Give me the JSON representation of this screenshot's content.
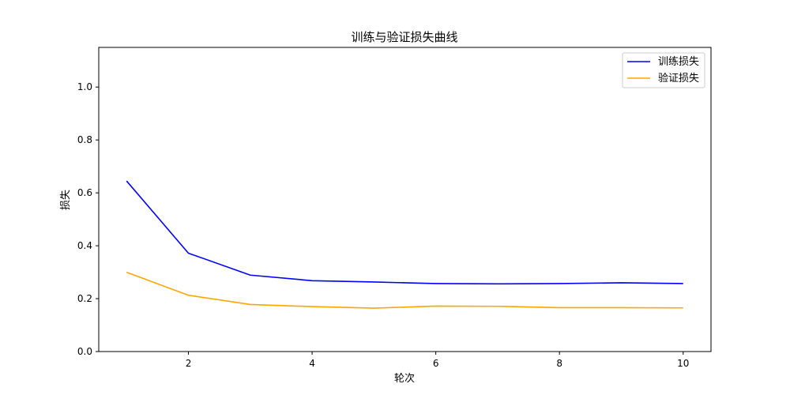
{
  "chart_data": {
    "type": "line",
    "title": "训练与验证损失曲线",
    "xlabel": "轮次",
    "ylabel": "损失",
    "xlim": [
      0.55,
      10.45
    ],
    "ylim": [
      0.0,
      1.15
    ],
    "xticks": [
      2,
      4,
      6,
      8,
      10
    ],
    "yticks": [
      0.0,
      0.2,
      0.4,
      0.6,
      0.8,
      1.0
    ],
    "xtick_labels": [
      "2",
      "4",
      "6",
      "8",
      "10"
    ],
    "ytick_labels": [
      "0.0",
      "0.2",
      "0.4",
      "0.6",
      "0.8",
      "1.0"
    ],
    "grid": false,
    "legend_position": "top-right",
    "x": [
      1,
      2,
      3,
      4,
      5,
      6,
      7,
      8,
      9,
      10
    ],
    "series": [
      {
        "name": "训练损失",
        "color": "#0000ff",
        "values": [
          0.645,
          0.372,
          0.289,
          0.268,
          0.263,
          0.257,
          0.256,
          0.257,
          0.26,
          0.257
        ]
      },
      {
        "name": "验证损失",
        "color": "#ffa500",
        "values": [
          0.3,
          0.213,
          0.178,
          0.17,
          0.164,
          0.172,
          0.171,
          0.166,
          0.166,
          0.165
        ]
      }
    ]
  }
}
